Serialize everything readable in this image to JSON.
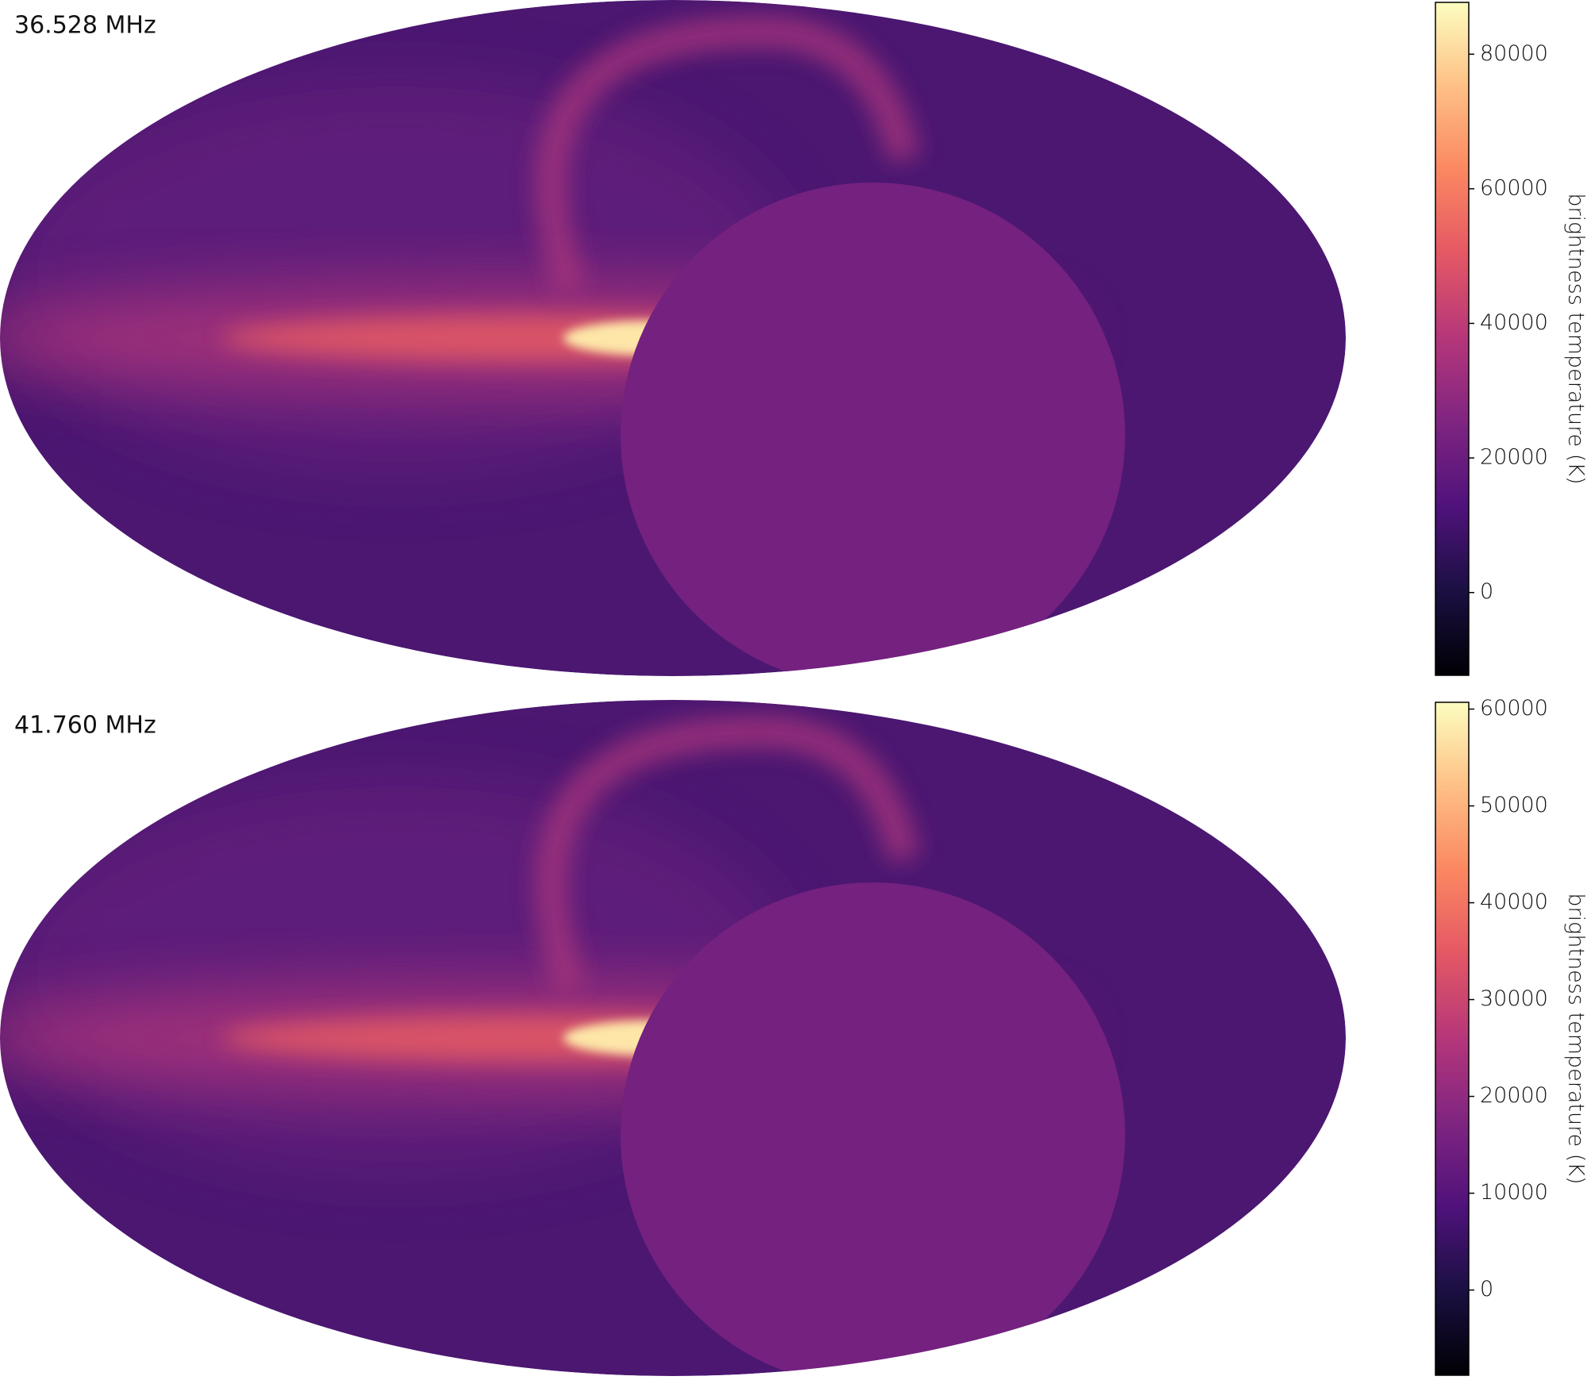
{
  "chart_data": [
    {
      "type": "skymap",
      "title": "36.528 MHz",
      "colorbar_label": "brightness temperature (K)",
      "colormap": "magma",
      "ylim": [
        -12300,
        87700
      ],
      "yticks": [
        0,
        20000,
        40000,
        60000,
        80000
      ]
    },
    {
      "type": "skymap",
      "title": "41.760 MHz",
      "colorbar_label": "brightness temperature (K)",
      "colormap": "magma",
      "ylim": [
        -8800,
        60700
      ],
      "yticks": [
        0,
        10000,
        20000,
        30000,
        40000,
        50000,
        60000
      ]
    }
  ]
}
